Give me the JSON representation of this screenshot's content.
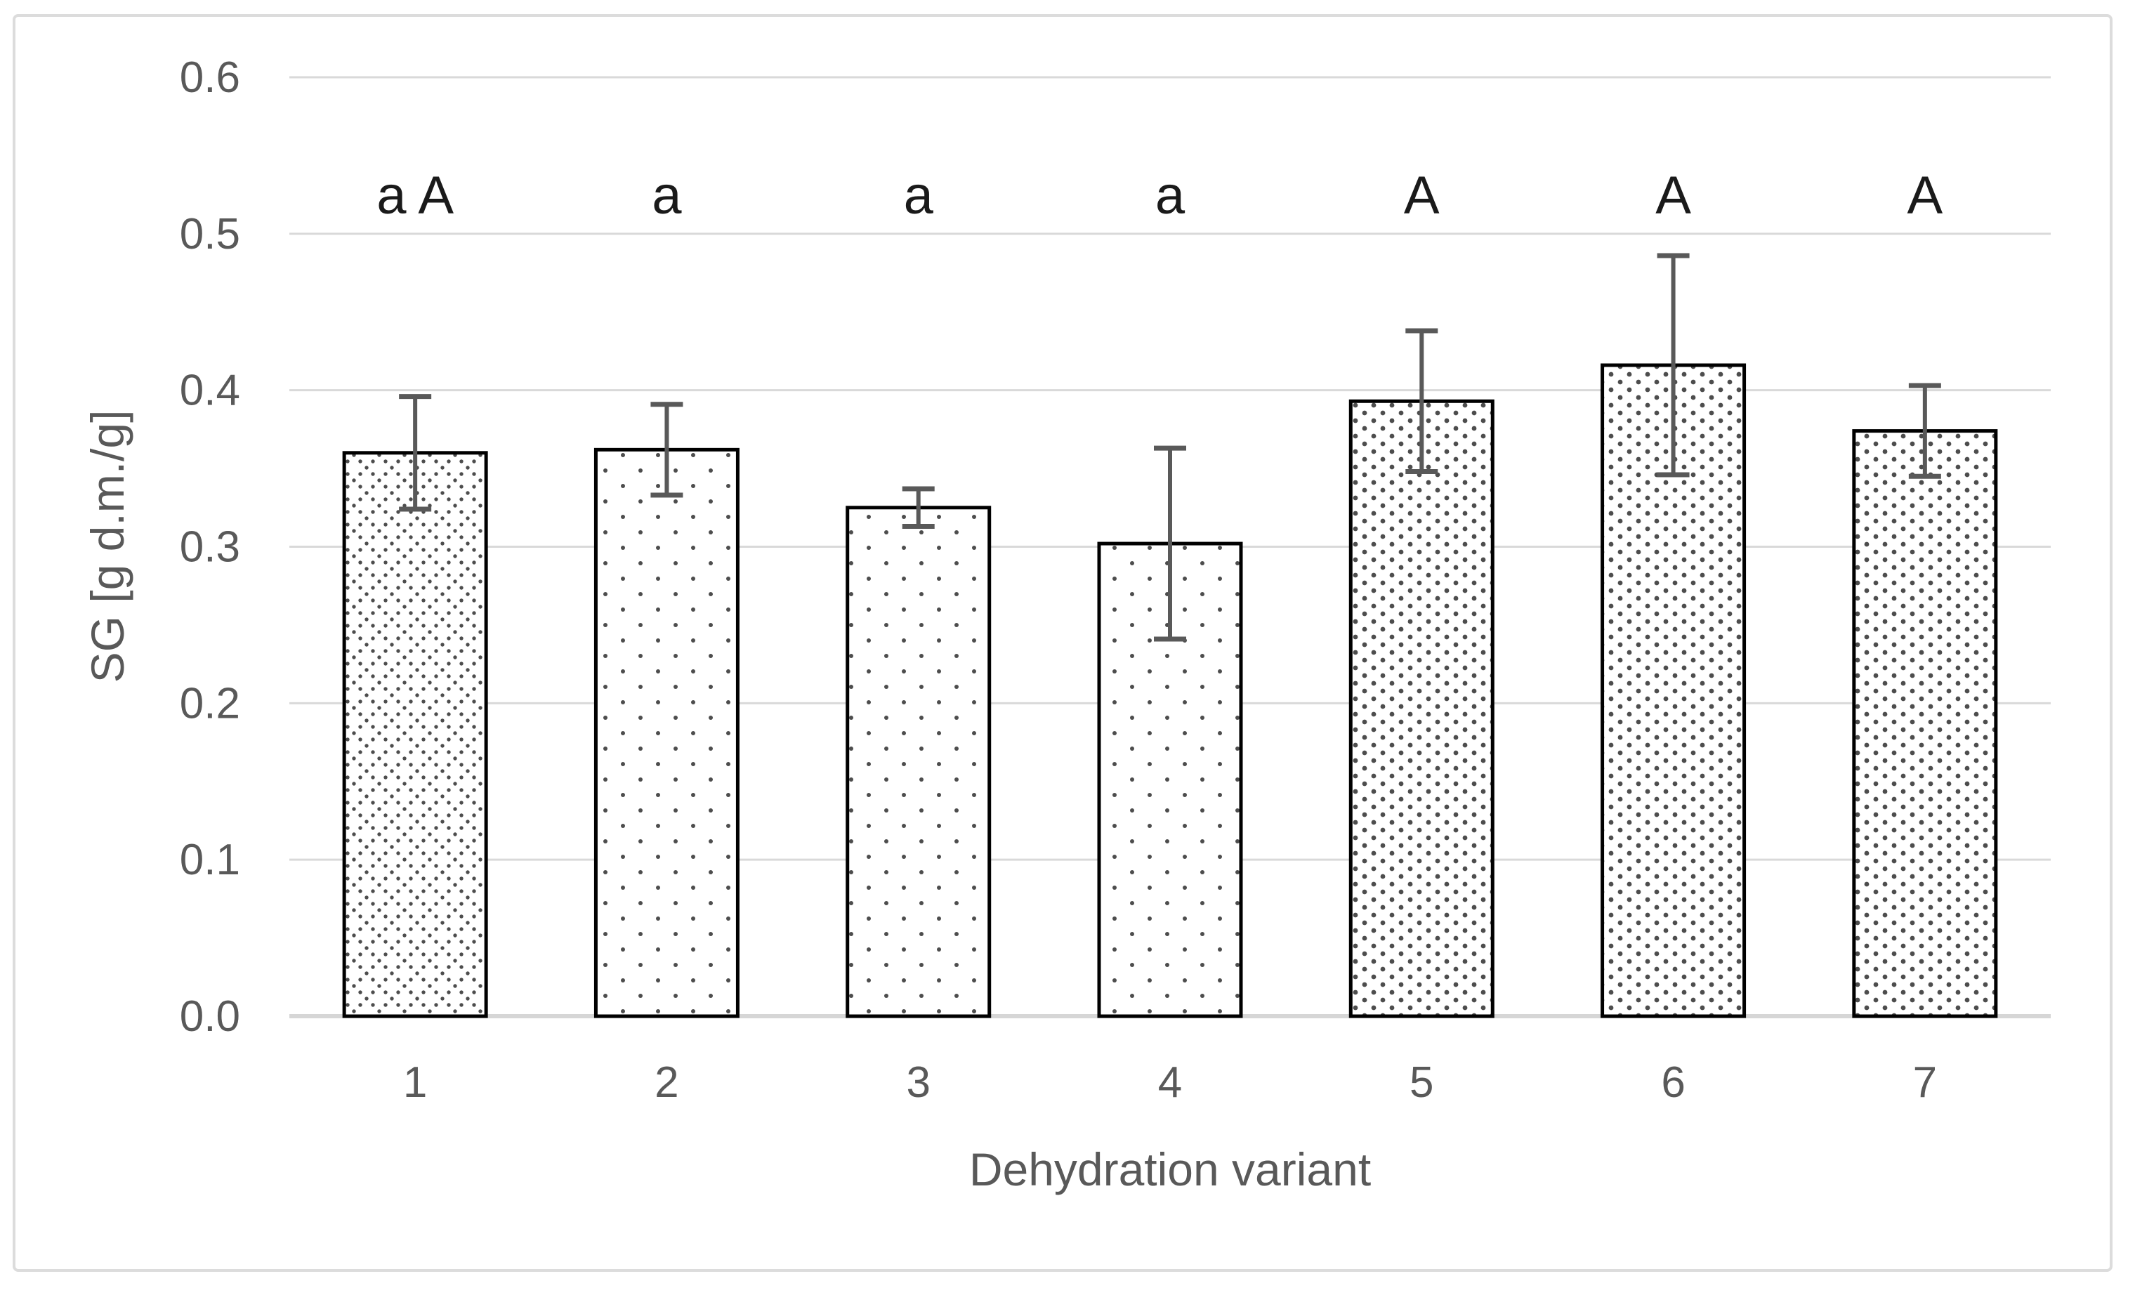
{
  "figure": {
    "kind": "patterned-column-chart-with-error-bars",
    "background": "#ffffff"
  },
  "colors": {
    "axis_text": "#595959",
    "gridline": "#d9d9d9",
    "baseline": "#d6d6d6",
    "bar_border": "#000000",
    "bar_fill_bg": "#ffffff",
    "pattern_dot": "#4d4d4d",
    "error_bar": "#595959",
    "sig_letters": "#1a1a1a",
    "frame_border": "#dcdcdc"
  },
  "chart_data": {
    "type": "bar",
    "title": "",
    "xlabel": "Dehydration variant",
    "ylabel": "SG [g d.m./g]",
    "categories": [
      "1",
      "2",
      "3",
      "4",
      "5",
      "6",
      "7"
    ],
    "values": [
      0.36,
      0.362,
      0.325,
      0.302,
      0.393,
      0.416,
      0.374
    ],
    "error_plus": [
      0.036,
      0.029,
      0.012,
      0.061,
      0.045,
      0.07,
      0.029
    ],
    "error_minus": [
      0.036,
      0.029,
      0.012,
      0.061,
      0.045,
      0.07,
      0.029
    ],
    "significance_labels": [
      "a A",
      "a",
      "a",
      "a",
      "A",
      "A",
      "A"
    ],
    "bar_patterns": [
      "diamond-lattice",
      "dots-sparse",
      "dots-sparse",
      "dots-sparse",
      "dots-dense",
      "dots-dense",
      "dots-dense"
    ],
    "ylim": [
      0.0,
      0.6
    ],
    "ytick_step": 0.1,
    "ytick_labels": [
      "0.0",
      "0.1",
      "0.2",
      "0.3",
      "0.4",
      "0.5",
      "0.6"
    ],
    "grid": true,
    "legend": null
  }
}
